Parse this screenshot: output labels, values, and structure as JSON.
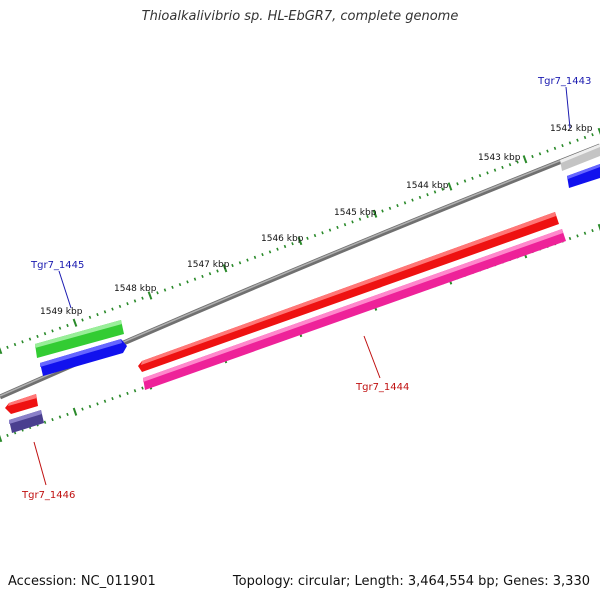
{
  "title": "Thioalkalivibrio sp. HL-EbGR7, complete genome",
  "footer": {
    "accession": "Accession: NC_011901",
    "summary": "Topology: circular; Length: 3,464,554 bp; Genes: 3,330"
  },
  "colors": {
    "backbone": "#8c8c8c",
    "tick": "#2a8a2a",
    "label_blue": "#1a1ab0",
    "label_red": "#c01010",
    "feature_red": "#ee1111",
    "feature_pink": "#ee2299",
    "feature_green": "#33cc33",
    "feature_blue": "#1111ee",
    "feature_purple": "#4a3f8f",
    "feature_gray": "#c4c4c4"
  },
  "scale_labels": [
    "1542 kbp",
    "1543 kbp",
    "1544 kbp",
    "1545 kbp",
    "1546 kbp",
    "1547 kbp",
    "1548 kbp",
    "1549 kbp"
  ],
  "genes": [
    {
      "id": "gene-tgr7-1443",
      "label": "Tgr7_1443",
      "color_key": "label_blue"
    },
    {
      "id": "gene-tgr7-1444",
      "label": "Tgr7_1444",
      "color_key": "label_red"
    },
    {
      "id": "gene-tgr7-1445",
      "label": "Tgr7_1445",
      "color_key": "label_blue"
    },
    {
      "id": "gene-tgr7-1446",
      "label": "Tgr7_1446",
      "color_key": "label_red"
    }
  ]
}
